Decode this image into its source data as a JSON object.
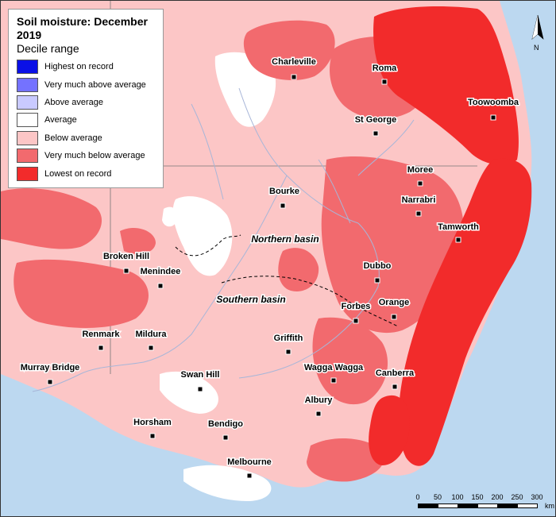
{
  "legend": {
    "title": "Soil moisture: December 2019",
    "subtitle": "Decile range",
    "items": [
      {
        "label": "Highest on record",
        "color": "#0a10e6"
      },
      {
        "label": "Very much above average",
        "color": "#7472ff"
      },
      {
        "label": "Above average",
        "color": "#c9caff"
      },
      {
        "label": "Average",
        "color": "#ffffff"
      },
      {
        "label": "Below average",
        "color": "#fcc6c6"
      },
      {
        "label": "Very much below average",
        "color": "#f26a6e"
      },
      {
        "label": "Lowest on record",
        "color": "#f22b2b"
      }
    ]
  },
  "towns": [
    "Charleville",
    "Roma",
    "Toowoomba",
    "St George",
    "Moree",
    "Narrabri",
    "Bourke",
    "Tamworth",
    "Broken Hill",
    "Menindee",
    "Dubbo",
    "Forbes",
    "Orange",
    "Renmark",
    "Mildura",
    "Griffith",
    "Wagga Wagga",
    "Canberra",
    "Murray Bridge",
    "Swan Hill",
    "Albury",
    "Horsham",
    "Bendigo",
    "Melbourne"
  ],
  "basins": [
    "Northern basin",
    "Southern basin"
  ],
  "north": {
    "label": "N"
  },
  "scale": {
    "ticks": [
      "0",
      "50",
      "100",
      "150",
      "200",
      "250",
      "300"
    ],
    "unit": "km"
  },
  "colors": {
    "sea": "#bcd8f0",
    "land": "#fcc6c6",
    "veryBelow": "#f26a6e",
    "lowest": "#f22b2b",
    "average": "#ffffff",
    "river": "#a8b6d8"
  }
}
